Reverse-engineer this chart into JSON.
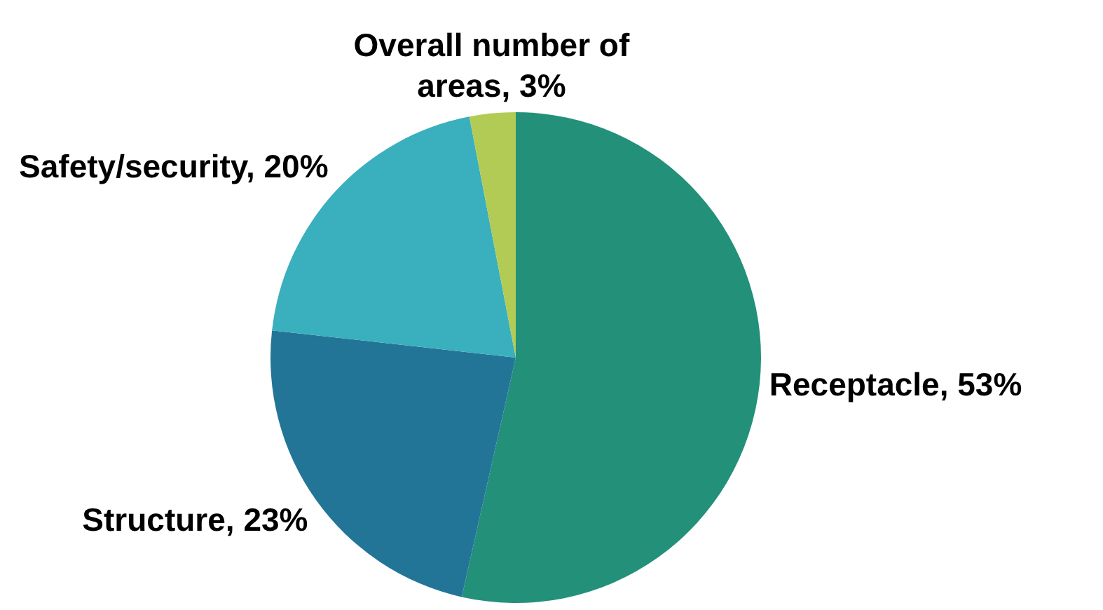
{
  "chart_data": {
    "type": "pie",
    "categories": [
      "Receptacle",
      "Structure",
      "Safety/security",
      "Overall number of areas"
    ],
    "values": [
      53,
      23,
      20,
      3
    ],
    "colors": [
      "#23907a",
      "#237598",
      "#3aafbd",
      "#b2cb55"
    ],
    "value_labels": [
      "53%",
      "23%",
      "20%",
      "3%"
    ]
  }
}
